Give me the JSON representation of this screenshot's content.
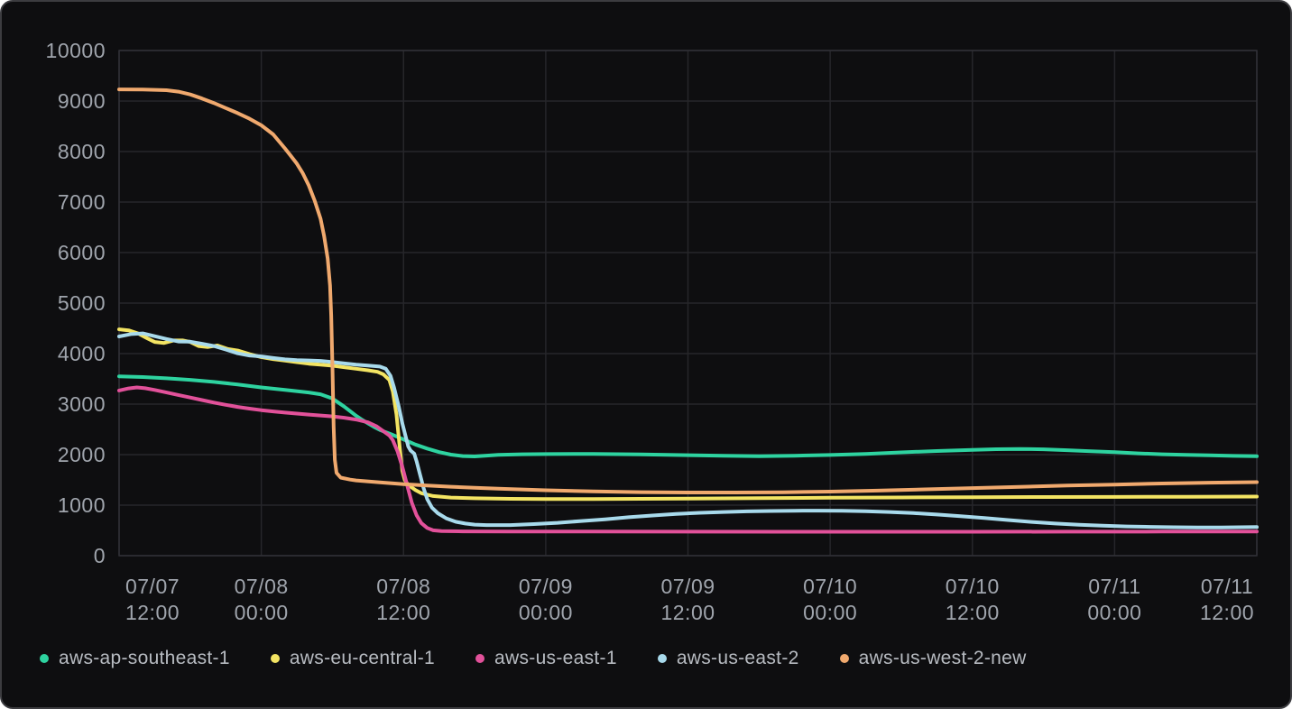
{
  "card": {
    "background": "#0e0e10",
    "border_color": "#3c3c40",
    "grid_color": "#26262a",
    "tick_text_color": "#a0a5ad",
    "legend_text_color": "#b7bbc1"
  },
  "chart_data": {
    "type": "line",
    "title": "",
    "xlabel": "",
    "ylabel": "",
    "grid": true,
    "legend_position": "bottom-left",
    "x_axis": {
      "unit": "hours since 07/07 12:00",
      "range_hours": [
        0,
        96
      ],
      "tick_hours": [
        0,
        12,
        24,
        36,
        48,
        60,
        72,
        84,
        96
      ],
      "tick_labels": [
        [
          "07/07",
          "12:00"
        ],
        [
          "07/08",
          "00:00"
        ],
        [
          "07/08",
          "12:00"
        ],
        [
          "07/09",
          "00:00"
        ],
        [
          "07/09",
          "12:00"
        ],
        [
          "07/10",
          "00:00"
        ],
        [
          "07/10",
          "12:00"
        ],
        [
          "07/11",
          "00:00"
        ],
        [
          "07/11",
          "12:00"
        ]
      ]
    },
    "y_axis": {
      "min": 0,
      "max": 10000,
      "tick_step": 1000,
      "tick_labels": [
        "0",
        "1000",
        "2000",
        "3000",
        "4000",
        "5000",
        "6000",
        "7000",
        "8000",
        "9000",
        "10000"
      ]
    },
    "series": [
      {
        "name": "aws-ap-southeast-1",
        "color": "#2ed3a0",
        "points": [
          [
            0,
            3550
          ],
          [
            2,
            3535
          ],
          [
            4,
            3510
          ],
          [
            6,
            3480
          ],
          [
            8,
            3440
          ],
          [
            10,
            3390
          ],
          [
            12,
            3330
          ],
          [
            14,
            3280
          ],
          [
            16,
            3230
          ],
          [
            17,
            3195
          ],
          [
            18,
            3110
          ],
          [
            19,
            2950
          ],
          [
            19.5,
            2860
          ],
          [
            20,
            2770
          ],
          [
            20.5,
            2690
          ],
          [
            21,
            2620
          ],
          [
            21.5,
            2550
          ],
          [
            22,
            2490
          ],
          [
            23,
            2400
          ],
          [
            24,
            2300
          ],
          [
            24.5,
            2250
          ],
          [
            25,
            2200
          ],
          [
            26,
            2120
          ],
          [
            27,
            2050
          ],
          [
            28,
            2000
          ],
          [
            29,
            1972
          ],
          [
            30,
            1965
          ],
          [
            32,
            1995
          ],
          [
            34,
            2008
          ],
          [
            36,
            2010
          ],
          [
            40,
            2015
          ],
          [
            44,
            2005
          ],
          [
            48,
            1990
          ],
          [
            51,
            1978
          ],
          [
            54,
            1970
          ],
          [
            57,
            1978
          ],
          [
            60,
            1992
          ],
          [
            63,
            2015
          ],
          [
            66,
            2045
          ],
          [
            69,
            2072
          ],
          [
            72,
            2095
          ],
          [
            74,
            2108
          ],
          [
            76,
            2112
          ],
          [
            78,
            2105
          ],
          [
            80,
            2088
          ],
          [
            82,
            2068
          ],
          [
            84,
            2048
          ],
          [
            86,
            2025
          ],
          [
            88,
            2008
          ],
          [
            90,
            1995
          ],
          [
            92,
            1985
          ],
          [
            94,
            1975
          ],
          [
            96,
            1968
          ]
        ]
      },
      {
        "name": "aws-eu-central-1",
        "color": "#f3e463",
        "points": [
          [
            0,
            4480
          ],
          [
            0.8,
            4460
          ],
          [
            1.6,
            4400
          ],
          [
            2.4,
            4300
          ],
          [
            3,
            4230
          ],
          [
            3.8,
            4210
          ],
          [
            4.6,
            4260
          ],
          [
            5.4,
            4260
          ],
          [
            6,
            4230
          ],
          [
            6.7,
            4150
          ],
          [
            7.5,
            4130
          ],
          [
            8.3,
            4160
          ],
          [
            9.2,
            4090
          ],
          [
            10,
            4060
          ],
          [
            11,
            3990
          ],
          [
            12,
            3930
          ],
          [
            13,
            3890
          ],
          [
            14,
            3860
          ],
          [
            15,
            3830
          ],
          [
            16,
            3800
          ],
          [
            17,
            3780
          ],
          [
            18,
            3760
          ],
          [
            19,
            3730
          ],
          [
            20,
            3700
          ],
          [
            21,
            3670
          ],
          [
            21.8,
            3640
          ],
          [
            22.3,
            3590
          ],
          [
            22.8,
            3480
          ],
          [
            23.1,
            3250
          ],
          [
            23.4,
            2800
          ],
          [
            23.7,
            2100
          ],
          [
            23.9,
            1680
          ],
          [
            24.1,
            1500
          ],
          [
            24.4,
            1400
          ],
          [
            25,
            1300
          ],
          [
            25.5,
            1235
          ],
          [
            26.5,
            1180
          ],
          [
            28,
            1150
          ],
          [
            30,
            1135
          ],
          [
            33,
            1125
          ],
          [
            36,
            1122
          ],
          [
            40,
            1122
          ],
          [
            44,
            1125
          ],
          [
            48,
            1130
          ],
          [
            54,
            1138
          ],
          [
            60,
            1146
          ],
          [
            66,
            1152
          ],
          [
            72,
            1157
          ],
          [
            78,
            1160
          ],
          [
            84,
            1163
          ],
          [
            90,
            1166
          ],
          [
            96,
            1170
          ]
        ]
      },
      {
        "name": "aws-us-east-1",
        "color": "#e2519a",
        "points": [
          [
            0,
            3270
          ],
          [
            0.8,
            3310
          ],
          [
            1.5,
            3330
          ],
          [
            2.2,
            3315
          ],
          [
            3,
            3280
          ],
          [
            4,
            3230
          ],
          [
            5,
            3180
          ],
          [
            6,
            3130
          ],
          [
            7,
            3080
          ],
          [
            8,
            3030
          ],
          [
            9,
            2985
          ],
          [
            10,
            2945
          ],
          [
            11,
            2910
          ],
          [
            12,
            2880
          ],
          [
            13,
            2855
          ],
          [
            14,
            2832
          ],
          [
            15,
            2812
          ],
          [
            16,
            2792
          ],
          [
            17,
            2775
          ],
          [
            18,
            2758
          ],
          [
            19,
            2730
          ],
          [
            20,
            2695
          ],
          [
            21,
            2640
          ],
          [
            21.7,
            2565
          ],
          [
            22.3,
            2465
          ],
          [
            22.8,
            2380
          ],
          [
            23.1,
            2285
          ],
          [
            23.5,
            2060
          ],
          [
            23.9,
            1760
          ],
          [
            24.3,
            1400
          ],
          [
            24.7,
            1050
          ],
          [
            25.1,
            800
          ],
          [
            25.5,
            645
          ],
          [
            26,
            548
          ],
          [
            26.5,
            502
          ],
          [
            27.2,
            486
          ],
          [
            29,
            480
          ],
          [
            33,
            478
          ],
          [
            40,
            477
          ],
          [
            48,
            475
          ],
          [
            56,
            474
          ],
          [
            64,
            474
          ],
          [
            72,
            474
          ],
          [
            80,
            475
          ],
          [
            88,
            476
          ],
          [
            96,
            478
          ]
        ]
      },
      {
        "name": "aws-us-east-2",
        "color": "#a8daec",
        "points": [
          [
            0,
            4340
          ],
          [
            1,
            4385
          ],
          [
            2,
            4400
          ],
          [
            3,
            4345
          ],
          [
            4,
            4290
          ],
          [
            5,
            4240
          ],
          [
            6,
            4235
          ],
          [
            7,
            4195
          ],
          [
            8,
            4150
          ],
          [
            9,
            4080
          ],
          [
            10,
            4005
          ],
          [
            11,
            3962
          ],
          [
            12,
            3945
          ],
          [
            13,
            3912
          ],
          [
            14,
            3885
          ],
          [
            15,
            3872
          ],
          [
            16,
            3865
          ],
          [
            17,
            3855
          ],
          [
            18,
            3832
          ],
          [
            19,
            3805
          ],
          [
            20,
            3782
          ],
          [
            21,
            3765
          ],
          [
            22,
            3742
          ],
          [
            22.5,
            3700
          ],
          [
            22.9,
            3560
          ],
          [
            23.2,
            3330
          ],
          [
            23.6,
            2950
          ],
          [
            23.9,
            2620
          ],
          [
            24.2,
            2340
          ],
          [
            24.4,
            2160
          ],
          [
            24.6,
            2080
          ],
          [
            24.9,
            2020
          ],
          [
            25.1,
            1870
          ],
          [
            25.4,
            1600
          ],
          [
            25.7,
            1330
          ],
          [
            26,
            1120
          ],
          [
            26.4,
            950
          ],
          [
            26.9,
            840
          ],
          [
            27.6,
            740
          ],
          [
            28.4,
            672
          ],
          [
            29.2,
            635
          ],
          [
            30,
            615
          ],
          [
            31,
            606
          ],
          [
            33,
            605
          ],
          [
            35,
            625
          ],
          [
            37,
            650
          ],
          [
            39,
            685
          ],
          [
            41,
            720
          ],
          [
            43,
            760
          ],
          [
            45,
            795
          ],
          [
            47,
            825
          ],
          [
            49,
            848
          ],
          [
            51,
            864
          ],
          [
            53,
            876
          ],
          [
            55,
            884
          ],
          [
            57,
            889
          ],
          [
            59,
            891
          ],
          [
            61,
            888
          ],
          [
            63,
            880
          ],
          [
            65,
            864
          ],
          [
            67,
            842
          ],
          [
            69,
            815
          ],
          [
            71,
            782
          ],
          [
            73,
            744
          ],
          [
            75,
            706
          ],
          [
            77,
            668
          ],
          [
            79,
            636
          ],
          [
            81,
            610
          ],
          [
            83,
            592
          ],
          [
            85,
            578
          ],
          [
            87,
            569
          ],
          [
            89,
            562
          ],
          [
            91,
            558
          ],
          [
            93,
            557
          ],
          [
            96,
            566
          ]
        ]
      },
      {
        "name": "aws-us-west-2-new",
        "color": "#f0a96e",
        "points": [
          [
            0,
            9230
          ],
          [
            2,
            9228
          ],
          [
            4,
            9215
          ],
          [
            5,
            9185
          ],
          [
            6,
            9130
          ],
          [
            7,
            9050
          ],
          [
            8,
            8960
          ],
          [
            9,
            8860
          ],
          [
            10,
            8760
          ],
          [
            11,
            8650
          ],
          [
            12,
            8520
          ],
          [
            13,
            8340
          ],
          [
            14,
            8060
          ],
          [
            14.5,
            7910
          ],
          [
            15,
            7760
          ],
          [
            15.5,
            7570
          ],
          [
            16,
            7330
          ],
          [
            16.5,
            7030
          ],
          [
            17,
            6670
          ],
          [
            17.3,
            6330
          ],
          [
            17.6,
            5880
          ],
          [
            17.8,
            5350
          ],
          [
            17.9,
            4750
          ],
          [
            18,
            3800
          ],
          [
            18.1,
            2550
          ],
          [
            18.2,
            1900
          ],
          [
            18.35,
            1640
          ],
          [
            18.7,
            1545
          ],
          [
            19.5,
            1505
          ],
          [
            20,
            1490
          ],
          [
            22,
            1450
          ],
          [
            24,
            1415
          ],
          [
            26,
            1390
          ],
          [
            28,
            1365
          ],
          [
            30,
            1345
          ],
          [
            32,
            1325
          ],
          [
            34,
            1310
          ],
          [
            36,
            1295
          ],
          [
            40,
            1272
          ],
          [
            44,
            1258
          ],
          [
            48,
            1250
          ],
          [
            52,
            1250
          ],
          [
            56,
            1256
          ],
          [
            60,
            1268
          ],
          [
            64,
            1288
          ],
          [
            68,
            1312
          ],
          [
            72,
            1338
          ],
          [
            76,
            1362
          ],
          [
            80,
            1388
          ],
          [
            84,
            1408
          ],
          [
            88,
            1428
          ],
          [
            92,
            1444
          ],
          [
            96,
            1456
          ]
        ]
      }
    ]
  }
}
